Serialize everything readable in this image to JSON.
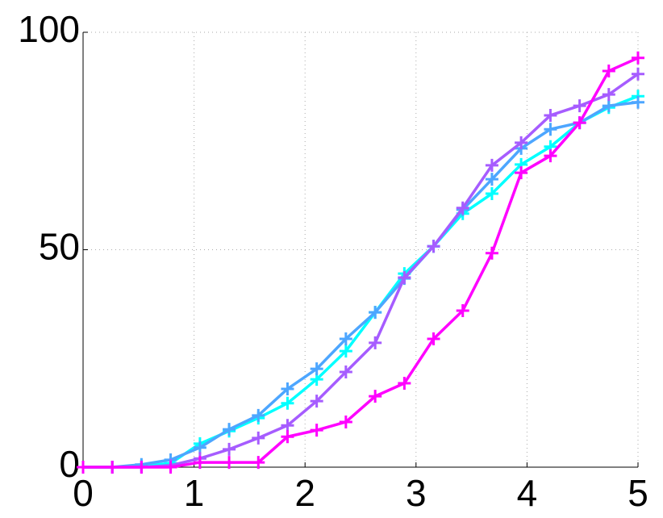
{
  "chart_data": {
    "type": "line",
    "x": [
      0,
      0.263,
      0.526,
      0.789,
      1.053,
      1.316,
      1.579,
      1.842,
      2.105,
      2.368,
      2.632,
      2.895,
      3.158,
      3.421,
      3.684,
      3.947,
      4.211,
      4.474,
      4.737,
      5
    ],
    "series": [
      {
        "color": "#00ffff",
        "values": [
          0,
          0,
          0.2,
          0.9,
          5.4,
          8.3,
          11.3,
          14.7,
          20.2,
          26.7,
          35.6,
          44.5,
          50.8,
          58.3,
          62.9,
          69.6,
          73.7,
          79.2,
          82.7,
          85.3
        ]
      },
      {
        "color": "#4da6ff",
        "values": [
          0,
          0,
          0.6,
          1.7,
          4.5,
          8.7,
          11.9,
          18.0,
          22.6,
          29.5,
          35.6,
          43.4,
          50.8,
          59.2,
          66.2,
          73.3,
          77.7,
          79.2,
          83.1,
          83.9
        ]
      },
      {
        "color": "#a65cff",
        "values": [
          0,
          0,
          0,
          0.4,
          2.0,
          4.1,
          6.7,
          9.6,
          15.2,
          21.9,
          28.6,
          43.6,
          50.8,
          59.6,
          69.4,
          74.6,
          80.9,
          83.1,
          85.7,
          90.4
        ]
      },
      {
        "color": "#ff00ff",
        "values": [
          0,
          0,
          0,
          0,
          1.1,
          1.1,
          1.1,
          7.0,
          8.5,
          10.4,
          16.3,
          19.3,
          29.5,
          36.0,
          49.2,
          67.7,
          71.6,
          79.2,
          91.1,
          94.1
        ]
      }
    ],
    "xlim": [
      0,
      5
    ],
    "xticks": [
      0,
      1,
      2,
      3,
      4,
      5
    ],
    "ylim": [
      0,
      100
    ],
    "yticks": [
      0,
      50,
      100
    ],
    "grid": true,
    "markers": "+"
  }
}
